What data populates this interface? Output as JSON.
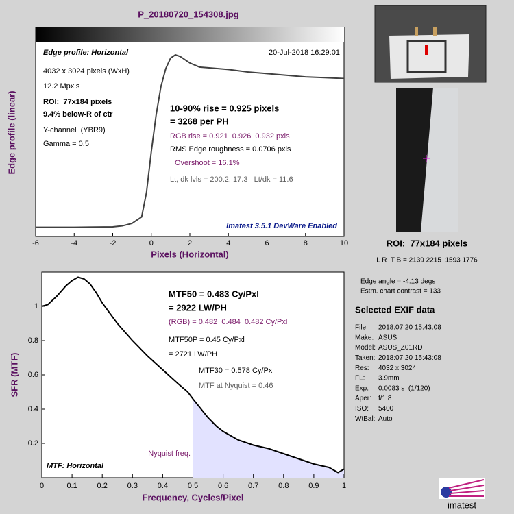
{
  "title": "P_20180720_154308.jpg",
  "chart_data": [
    {
      "type": "line",
      "x_label": "Pixels (Horizontal)",
      "y_label": "Edge profile (linear)",
      "x": [
        -6,
        -4,
        -2,
        -1.5,
        -1,
        -0.5,
        -0.25,
        0,
        0.25,
        0.5,
        0.75,
        1,
        1.25,
        1.5,
        2,
        2.5,
        3,
        4,
        5,
        6,
        7,
        8,
        9,
        10
      ],
      "values": [
        17.3,
        17.3,
        17.8,
        19,
        22,
        30,
        60,
        110,
        155,
        190,
        212,
        225,
        229,
        227,
        219,
        214,
        213,
        211,
        208,
        206,
        204,
        202,
        201,
        200
      ],
      "color": "#404040",
      "xlim": [
        -6,
        10
      ],
      "xticks": [
        -6,
        -4,
        -2,
        0,
        2,
        4,
        6,
        8,
        10
      ],
      "ylim": [
        6,
        261
      ],
      "annotations": [
        "Edge profile: Horizontal",
        "20-Jul-2018 16:29:01",
        "4032 x 3024 pixels (WxH)",
        "12.2 Mpxls",
        "ROI:  77x184 pixels",
        "9.4% below-R of ctr",
        "Y-channel  (YBR9)",
        "Gamma = 0.5",
        "10-90% rise = 0.925 pixels",
        "= 3268 per PH",
        "RGB rise = 0.921  0.926  0.932 pxls",
        "RMS Edge roughness = 0.0706 pxls",
        "Overshoot = 16.1%",
        "Lt, dk lvls = 200.2, 17.3   Lt/dk = 11.6",
        "Imatest 3.5.1 DevWare Enabled"
      ]
    },
    {
      "type": "line",
      "x_label": "Frequency, Cycles/Pixel",
      "y_label": "SFR (MTF)",
      "x": [
        0,
        0.02,
        0.05,
        0.08,
        0.1,
        0.12,
        0.14,
        0.16,
        0.18,
        0.2,
        0.25,
        0.3,
        0.35,
        0.4,
        0.45,
        0.483,
        0.5,
        0.55,
        0.578,
        0.6,
        0.65,
        0.7,
        0.75,
        0.8,
        0.85,
        0.9,
        0.95,
        0.98,
        1
      ],
      "values": [
        1,
        1.01,
        1.06,
        1.12,
        1.15,
        1.17,
        1.16,
        1.13,
        1.08,
        1.02,
        0.9,
        0.8,
        0.71,
        0.63,
        0.55,
        0.5,
        0.46,
        0.35,
        0.3,
        0.27,
        0.22,
        0.19,
        0.17,
        0.14,
        0.11,
        0.08,
        0.06,
        0.03,
        0.05
      ],
      "color": "#000000",
      "fill_color": "#e2e2ff",
      "nyquist": 0.5,
      "nyquist_color": "#6a6aff",
      "xlim": [
        0,
        1
      ],
      "xticks": [
        0,
        0.1,
        0.2,
        0.3,
        0.4,
        0.5,
        0.6,
        0.7,
        0.8,
        0.9,
        1
      ],
      "ylim": [
        0,
        1.2
      ],
      "yticks": [
        0.2,
        0.4,
        0.6,
        0.8,
        1
      ],
      "annotations": [
        "MTF50 = 0.483 Cy/Pxl",
        "= 2922 LW/PH",
        "(RGB) = 0.482  0.484  0.482 Cy/Pxl",
        "MTF50P = 0.45 Cy/Pxl",
        "= 2721 LW/PH",
        "MTF30 = 0.578 Cy/Pxl",
        "MTF at Nyquist = 0.46",
        "MTF: Horizontal",
        "Nyquist freq."
      ]
    }
  ],
  "roi": {
    "label": "ROI:  77x184 pixels",
    "coords": "L R  T B = 2139 2215  1593 1776"
  },
  "measurements": [
    "Edge angle = -4.13 degs",
    "Estm. chart contrast = 133"
  ],
  "exif": {
    "title": "Selected EXIF data",
    "rows": [
      [
        "File:",
        "2018:07:20 15:43:08"
      ],
      [
        "Make:",
        "ASUS"
      ],
      [
        "Model:",
        "ASUS_Z01RD"
      ],
      [
        "Taken:",
        "2018:07:20 15:43:08"
      ],
      [
        "Res:",
        "4032 x 3024"
      ],
      [
        "FL:",
        "3.9mm"
      ],
      [
        "Exp:",
        "0.0083 s  (1/120)"
      ],
      [
        "Aper:",
        "f/1.8"
      ],
      [
        "ISO:",
        "5400"
      ],
      [
        "WtBal:",
        "Auto"
      ]
    ]
  },
  "logo": "imatest"
}
